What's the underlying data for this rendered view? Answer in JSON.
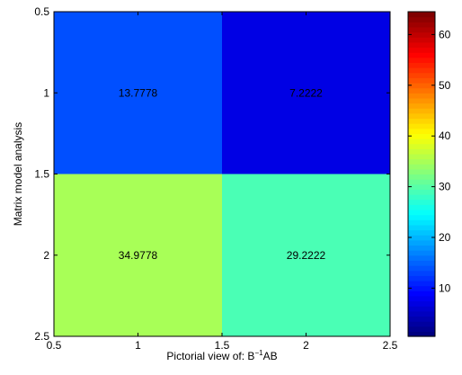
{
  "chart_data": {
    "type": "heatmap",
    "xlabel": "Pictorial view   of: B",
    "xlabel_superscript": "−1",
    "xlabel_suffix": "AB",
    "ylabel": "Matrix model analysis",
    "x_ticks": [
      "0.5",
      "1",
      "1.5",
      "2",
      "2.5"
    ],
    "y_ticks": [
      "0.5",
      "1",
      "1.5",
      "2",
      "2.5"
    ],
    "xlim": [
      0.5,
      2.5
    ],
    "ylim": [
      0.5,
      2.5
    ],
    "y_reversed": true,
    "cells": [
      {
        "x": 1,
        "y": 1,
        "value": 13.7778,
        "label": "13.7778"
      },
      {
        "x": 2,
        "y": 1,
        "value": 7.2222,
        "label": "7.2222"
      },
      {
        "x": 1,
        "y": 2,
        "value": 34.9778,
        "label": "34.9778"
      },
      {
        "x": 2,
        "y": 2,
        "value": 29.2222,
        "label": "29.2222"
      }
    ],
    "colormap": "jet",
    "color_range": [
      1,
      64
    ],
    "colorbar_ticks": [
      "10",
      "20",
      "30",
      "40",
      "50",
      "60"
    ],
    "grid": false
  }
}
